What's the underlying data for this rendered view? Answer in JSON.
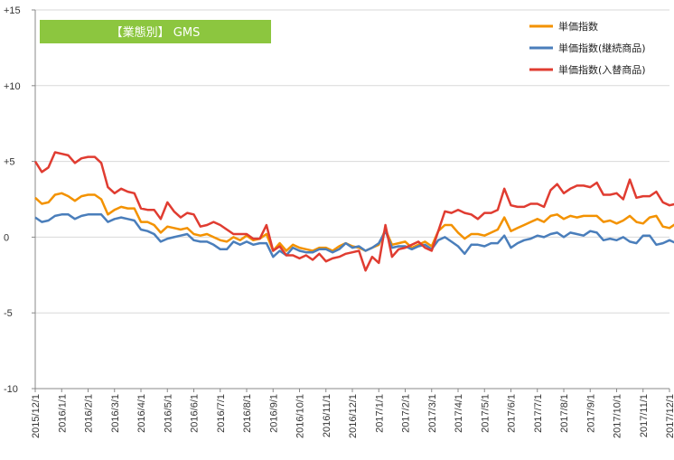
{
  "chart_data": {
    "type": "line",
    "title": "【業態別】 GMS",
    "title_bg_color": "#8cc63f",
    "ylim": [
      -10,
      15
    ],
    "y_ticks": [
      {
        "value": 15,
        "label": "+15"
      },
      {
        "value": 10,
        "label": "+10"
      },
      {
        "value": 5,
        "label": "+5"
      },
      {
        "value": 0,
        "label": "0"
      },
      {
        "value": -5,
        "label": "-5"
      },
      {
        "value": -10,
        "label": "-10"
      }
    ],
    "x_start": "2015-12-01",
    "x_end": "2017-12-01",
    "x_ticks": [
      "2015/12/1",
      "2016/1/1",
      "2016/2/1",
      "2016/3/1",
      "2016/4/1",
      "2016/5/1",
      "2016/6/1",
      "2016/7/1",
      "2016/8/1",
      "2016/9/1",
      "2016/10/1",
      "2016/11/1",
      "2016/12/1",
      "2017/1/1",
      "2017/2/1",
      "2017/3/1",
      "2017/4/1",
      "2017/5/1",
      "2017/6/1",
      "2017/7/1",
      "2017/8/1",
      "2017/9/1",
      "2017/10/1",
      "2017/11/1",
      "2017/12/1"
    ],
    "grid": "horizontal",
    "legend_position": "top-right",
    "series": [
      {
        "name": "単価指数",
        "color": "#f39200",
        "points": [
          [
            0,
            2.6
          ],
          [
            0.25,
            2.2
          ],
          [
            0.5,
            2.3
          ],
          [
            0.75,
            2.8
          ],
          [
            1,
            2.9
          ],
          [
            1.25,
            2.7
          ],
          [
            1.5,
            2.4
          ],
          [
            1.75,
            2.7
          ],
          [
            2,
            2.8
          ],
          [
            2.25,
            2.8
          ],
          [
            2.5,
            2.5
          ],
          [
            2.75,
            1.5
          ],
          [
            3,
            1.8
          ],
          [
            3.25,
            2.0
          ],
          [
            3.5,
            1.9
          ],
          [
            3.75,
            1.9
          ],
          [
            4,
            1.0
          ],
          [
            4.25,
            1.0
          ],
          [
            4.5,
            0.8
          ],
          [
            4.75,
            0.3
          ],
          [
            5,
            0.7
          ],
          [
            5.25,
            0.6
          ],
          [
            5.5,
            0.5
          ],
          [
            5.75,
            0.6
          ],
          [
            6,
            0.2
          ],
          [
            6.25,
            0.1
          ],
          [
            6.5,
            0.2
          ],
          [
            6.75,
            0.0
          ],
          [
            7,
            -0.2
          ],
          [
            7.25,
            -0.3
          ],
          [
            7.5,
            0.0
          ],
          [
            7.75,
            -0.2
          ],
          [
            8,
            0.1
          ],
          [
            8.25,
            -0.2
          ],
          [
            8.5,
            -0.1
          ],
          [
            8.75,
            0.2
          ],
          [
            9,
            -0.9
          ],
          [
            9.25,
            -0.4
          ],
          [
            9.5,
            -0.9
          ],
          [
            9.75,
            -0.5
          ],
          [
            10,
            -0.7
          ],
          [
            10.25,
            -0.8
          ],
          [
            10.5,
            -0.9
          ],
          [
            10.75,
            -0.7
          ],
          [
            11,
            -0.7
          ],
          [
            11.25,
            -0.9
          ],
          [
            11.5,
            -0.6
          ],
          [
            11.75,
            -0.4
          ],
          [
            12,
            -0.6
          ],
          [
            12.25,
            -0.7
          ],
          [
            12.5,
            -0.9
          ],
          [
            12.75,
            -0.7
          ],
          [
            13,
            -0.5
          ],
          [
            13.25,
            0.5
          ],
          [
            13.5,
            -0.5
          ],
          [
            13.75,
            -0.4
          ],
          [
            14,
            -0.3
          ],
          [
            14.25,
            -0.7
          ],
          [
            14.5,
            -0.5
          ],
          [
            14.75,
            -0.3
          ],
          [
            15,
            -0.6
          ],
          [
            15.25,
            0.4
          ],
          [
            15.5,
            0.8
          ],
          [
            15.75,
            0.8
          ],
          [
            16,
            0.3
          ],
          [
            16.25,
            -0.1
          ],
          [
            16.5,
            0.2
          ],
          [
            16.75,
            0.2
          ],
          [
            17,
            0.1
          ],
          [
            17.25,
            0.3
          ],
          [
            17.5,
            0.5
          ],
          [
            17.75,
            1.3
          ],
          [
            18,
            0.4
          ],
          [
            18.25,
            0.6
          ],
          [
            18.5,
            0.8
          ],
          [
            18.75,
            1.0
          ],
          [
            19,
            1.2
          ],
          [
            19.25,
            1.0
          ],
          [
            19.5,
            1.4
          ],
          [
            19.75,
            1.5
          ],
          [
            20,
            1.2
          ],
          [
            20.25,
            1.4
          ],
          [
            20.5,
            1.3
          ],
          [
            20.75,
            1.4
          ],
          [
            21,
            1.4
          ],
          [
            21.25,
            1.4
          ],
          [
            21.5,
            1.0
          ],
          [
            21.75,
            1.1
          ],
          [
            22,
            0.9
          ],
          [
            22.25,
            1.1
          ],
          [
            22.5,
            1.4
          ],
          [
            22.75,
            1.0
          ],
          [
            23,
            0.9
          ],
          [
            23.25,
            1.3
          ],
          [
            23.5,
            1.4
          ],
          [
            23.75,
            0.7
          ],
          [
            24,
            0.6
          ],
          [
            24.25,
            0.9
          ],
          [
            24.5,
            0.5
          ],
          [
            24.75,
            1.0
          ],
          [
            25,
            0.8
          ]
        ]
      },
      {
        "name": "単価指数(継続商品)",
        "color": "#4a7ebb",
        "points": [
          [
            0,
            1.3
          ],
          [
            0.25,
            1.0
          ],
          [
            0.5,
            1.1
          ],
          [
            0.75,
            1.4
          ],
          [
            1,
            1.5
          ],
          [
            1.25,
            1.5
          ],
          [
            1.5,
            1.2
          ],
          [
            1.75,
            1.4
          ],
          [
            2,
            1.5
          ],
          [
            2.25,
            1.5
          ],
          [
            2.5,
            1.5
          ],
          [
            2.75,
            1.0
          ],
          [
            3,
            1.2
          ],
          [
            3.25,
            1.3
          ],
          [
            3.5,
            1.2
          ],
          [
            3.75,
            1.1
          ],
          [
            4,
            0.5
          ],
          [
            4.25,
            0.4
          ],
          [
            4.5,
            0.2
          ],
          [
            4.75,
            -0.3
          ],
          [
            5,
            -0.1
          ],
          [
            5.25,
            0.0
          ],
          [
            5.5,
            0.1
          ],
          [
            5.75,
            0.2
          ],
          [
            6,
            -0.2
          ],
          [
            6.25,
            -0.3
          ],
          [
            6.5,
            -0.3
          ],
          [
            6.75,
            -0.5
          ],
          [
            7,
            -0.8
          ],
          [
            7.25,
            -0.8
          ],
          [
            7.5,
            -0.3
          ],
          [
            7.75,
            -0.5
          ],
          [
            8,
            -0.3
          ],
          [
            8.25,
            -0.5
          ],
          [
            8.5,
            -0.4
          ],
          [
            8.75,
            -0.4
          ],
          [
            9,
            -1.3
          ],
          [
            9.25,
            -0.9
          ],
          [
            9.5,
            -1.2
          ],
          [
            9.75,
            -0.7
          ],
          [
            10,
            -0.9
          ],
          [
            10.25,
            -1.0
          ],
          [
            10.5,
            -1.0
          ],
          [
            10.75,
            -0.8
          ],
          [
            11,
            -0.8
          ],
          [
            11.25,
            -1.0
          ],
          [
            11.5,
            -0.8
          ],
          [
            11.75,
            -0.4
          ],
          [
            12,
            -0.7
          ],
          [
            12.25,
            -0.6
          ],
          [
            12.5,
            -0.9
          ],
          [
            12.75,
            -0.7
          ],
          [
            13,
            -0.4
          ],
          [
            13.25,
            0.4
          ],
          [
            13.5,
            -0.7
          ],
          [
            13.75,
            -0.6
          ],
          [
            14,
            -0.6
          ],
          [
            14.25,
            -0.8
          ],
          [
            14.5,
            -0.6
          ],
          [
            14.75,
            -0.5
          ],
          [
            15,
            -0.8
          ],
          [
            15.25,
            -0.2
          ],
          [
            15.5,
            0.0
          ],
          [
            15.75,
            -0.3
          ],
          [
            16,
            -0.6
          ],
          [
            16.25,
            -1.1
          ],
          [
            16.5,
            -0.5
          ],
          [
            16.75,
            -0.5
          ],
          [
            17,
            -0.6
          ],
          [
            17.25,
            -0.4
          ],
          [
            17.5,
            -0.4
          ],
          [
            17.75,
            0.1
          ],
          [
            18,
            -0.7
          ],
          [
            18.25,
            -0.4
          ],
          [
            18.5,
            -0.2
          ],
          [
            18.75,
            -0.1
          ],
          [
            19,
            0.1
          ],
          [
            19.25,
            0.0
          ],
          [
            19.5,
            0.2
          ],
          [
            19.75,
            0.3
          ],
          [
            20,
            0.0
          ],
          [
            20.25,
            0.3
          ],
          [
            20.5,
            0.2
          ],
          [
            20.75,
            0.1
          ],
          [
            21,
            0.4
          ],
          [
            21.25,
            0.3
          ],
          [
            21.5,
            -0.2
          ],
          [
            21.75,
            -0.1
          ],
          [
            22,
            -0.2
          ],
          [
            22.25,
            0.0
          ],
          [
            22.5,
            -0.3
          ],
          [
            22.75,
            -0.4
          ],
          [
            23,
            0.1
          ],
          [
            23.25,
            0.1
          ],
          [
            23.5,
            -0.5
          ],
          [
            23.75,
            -0.4
          ],
          [
            24,
            -0.2
          ],
          [
            24.25,
            -0.4
          ],
          [
            24.5,
            -0.6
          ],
          [
            24.75,
            -0.1
          ],
          [
            25,
            -0.4
          ]
        ]
      },
      {
        "name": "単価指数(入替商品)",
        "color": "#e03c31",
        "points": [
          [
            0,
            5.0
          ],
          [
            0.25,
            4.3
          ],
          [
            0.5,
            4.6
          ],
          [
            0.75,
            5.6
          ],
          [
            1,
            5.5
          ],
          [
            1.25,
            5.4
          ],
          [
            1.5,
            4.9
          ],
          [
            1.75,
            5.2
          ],
          [
            2,
            5.3
          ],
          [
            2.25,
            5.3
          ],
          [
            2.5,
            4.9
          ],
          [
            2.75,
            3.3
          ],
          [
            3,
            2.9
          ],
          [
            3.25,
            3.2
          ],
          [
            3.5,
            3.0
          ],
          [
            3.75,
            2.9
          ],
          [
            4,
            1.9
          ],
          [
            4.25,
            1.8
          ],
          [
            4.5,
            1.8
          ],
          [
            4.75,
            1.2
          ],
          [
            5,
            2.3
          ],
          [
            5.25,
            1.7
          ],
          [
            5.5,
            1.3
          ],
          [
            5.75,
            1.6
          ],
          [
            6,
            1.5
          ],
          [
            6.25,
            0.7
          ],
          [
            6.5,
            0.8
          ],
          [
            6.75,
            1.0
          ],
          [
            7,
            0.8
          ],
          [
            7.25,
            0.5
          ],
          [
            7.5,
            0.2
          ],
          [
            7.75,
            0.2
          ],
          [
            8,
            0.2
          ],
          [
            8.25,
            -0.1
          ],
          [
            8.5,
            -0.1
          ],
          [
            8.75,
            0.8
          ],
          [
            9,
            -0.9
          ],
          [
            9.25,
            -0.6
          ],
          [
            9.5,
            -1.2
          ],
          [
            9.75,
            -1.2
          ],
          [
            10,
            -1.4
          ],
          [
            10.25,
            -1.2
          ],
          [
            10.5,
            -1.5
          ],
          [
            10.75,
            -1.1
          ],
          [
            11,
            -1.6
          ],
          [
            11.25,
            -1.4
          ],
          [
            11.5,
            -1.3
          ],
          [
            11.75,
            -1.1
          ],
          [
            12,
            -1.0
          ],
          [
            12.25,
            -0.9
          ],
          [
            12.5,
            -2.2
          ],
          [
            12.75,
            -1.3
          ],
          [
            13,
            -1.7
          ],
          [
            13.25,
            0.8
          ],
          [
            13.5,
            -1.3
          ],
          [
            13.75,
            -0.8
          ],
          [
            14,
            -0.7
          ],
          [
            14.25,
            -0.5
          ],
          [
            14.5,
            -0.3
          ],
          [
            14.75,
            -0.7
          ],
          [
            15,
            -0.9
          ],
          [
            15.25,
            0.4
          ],
          [
            15.5,
            1.7
          ],
          [
            15.75,
            1.6
          ],
          [
            16,
            1.8
          ],
          [
            16.25,
            1.6
          ],
          [
            16.5,
            1.5
          ],
          [
            16.75,
            1.2
          ],
          [
            17,
            1.6
          ],
          [
            17.25,
            1.6
          ],
          [
            17.5,
            1.8
          ],
          [
            17.75,
            3.2
          ],
          [
            18,
            2.1
          ],
          [
            18.25,
            2.0
          ],
          [
            18.5,
            2.0
          ],
          [
            18.75,
            2.2
          ],
          [
            19,
            2.2
          ],
          [
            19.25,
            2.0
          ],
          [
            19.5,
            3.1
          ],
          [
            19.75,
            3.5
          ],
          [
            20,
            2.9
          ],
          [
            20.25,
            3.2
          ],
          [
            20.5,
            3.4
          ],
          [
            20.75,
            3.4
          ],
          [
            21,
            3.3
          ],
          [
            21.25,
            3.6
          ],
          [
            21.5,
            2.8
          ],
          [
            21.75,
            2.8
          ],
          [
            22,
            2.9
          ],
          [
            22.25,
            2.5
          ],
          [
            22.5,
            3.8
          ],
          [
            22.75,
            2.6
          ],
          [
            23,
            2.7
          ],
          [
            23.25,
            2.7
          ],
          [
            23.5,
            3.0
          ],
          [
            23.75,
            2.3
          ],
          [
            24,
            2.1
          ],
          [
            24.25,
            2.2
          ],
          [
            24.5,
            1.9
          ],
          [
            24.75,
            2.8
          ],
          [
            25,
            2.5
          ]
        ]
      }
    ]
  }
}
